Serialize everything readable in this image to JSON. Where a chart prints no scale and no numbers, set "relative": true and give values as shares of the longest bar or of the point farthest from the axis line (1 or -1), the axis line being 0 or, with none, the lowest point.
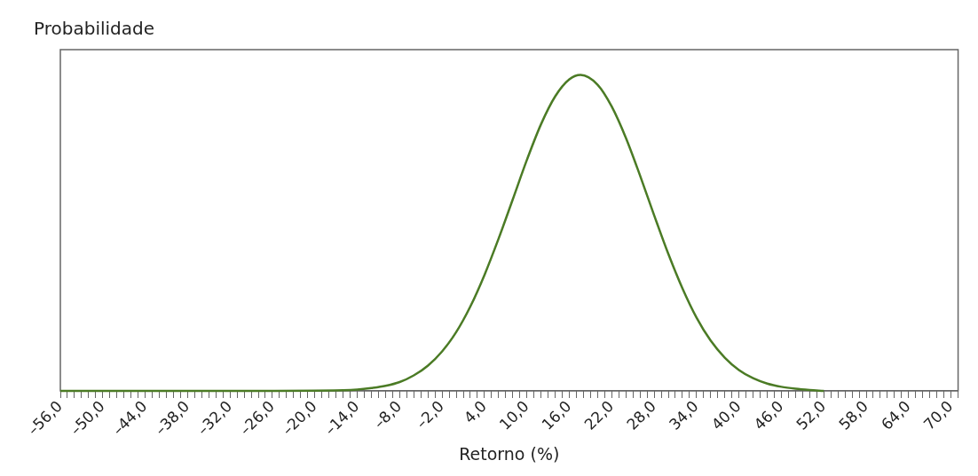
{
  "chart_data": {
    "type": "line",
    "relative": true,
    "xlabel": "Retorno (%)",
    "ylabel": "Probabilidade",
    "xlim": [
      -56,
      71
    ],
    "xticks": [
      {
        "value": -56,
        "label": "–56,0"
      },
      {
        "value": -55,
        "label": null
      },
      {
        "value": -54,
        "label": null
      },
      {
        "value": -53,
        "label": null
      },
      {
        "value": -52,
        "label": null
      },
      {
        "value": -51,
        "label": null
      },
      {
        "value": -50,
        "label": "–50,0"
      },
      {
        "value": -49,
        "label": null
      },
      {
        "value": -48,
        "label": null
      },
      {
        "value": -47,
        "label": null
      },
      {
        "value": -46,
        "label": null
      },
      {
        "value": -45,
        "label": null
      },
      {
        "value": -44,
        "label": "–44,0"
      },
      {
        "value": -43,
        "label": null
      },
      {
        "value": -42,
        "label": null
      },
      {
        "value": -41,
        "label": null
      },
      {
        "value": -40,
        "label": null
      },
      {
        "value": -39,
        "label": null
      },
      {
        "value": -38,
        "label": "–38,0"
      },
      {
        "value": -37,
        "label": null
      },
      {
        "value": -36,
        "label": null
      },
      {
        "value": -35,
        "label": null
      },
      {
        "value": -34,
        "label": null
      },
      {
        "value": -33,
        "label": null
      },
      {
        "value": -32,
        "label": "–32,0"
      },
      {
        "value": -31,
        "label": null
      },
      {
        "value": -30,
        "label": null
      },
      {
        "value": -29,
        "label": null
      },
      {
        "value": -28,
        "label": null
      },
      {
        "value": -27,
        "label": null
      },
      {
        "value": -26,
        "label": "–26,0"
      },
      {
        "value": -25,
        "label": null
      },
      {
        "value": -24,
        "label": null
      },
      {
        "value": -23,
        "label": null
      },
      {
        "value": -22,
        "label": null
      },
      {
        "value": -21,
        "label": null
      },
      {
        "value": -20,
        "label": "–20,0"
      },
      {
        "value": -19,
        "label": null
      },
      {
        "value": -18,
        "label": null
      },
      {
        "value": -17,
        "label": null
      },
      {
        "value": -16,
        "label": null
      },
      {
        "value": -15,
        "label": null
      },
      {
        "value": -14,
        "label": "–14,0"
      },
      {
        "value": -13,
        "label": null
      },
      {
        "value": -12,
        "label": null
      },
      {
        "value": -11,
        "label": null
      },
      {
        "value": -10,
        "label": null
      },
      {
        "value": -9,
        "label": null
      },
      {
        "value": -8,
        "label": "–8,0"
      },
      {
        "value": -7,
        "label": null
      },
      {
        "value": -6,
        "label": null
      },
      {
        "value": -5,
        "label": null
      },
      {
        "value": -4,
        "label": null
      },
      {
        "value": -3,
        "label": null
      },
      {
        "value": -2,
        "label": "–2,0"
      },
      {
        "value": -1,
        "label": null
      },
      {
        "value": 0,
        "label": null
      },
      {
        "value": 1,
        "label": null
      },
      {
        "value": 2,
        "label": null
      },
      {
        "value": 3,
        "label": null
      },
      {
        "value": 4,
        "label": "4,0"
      },
      {
        "value": 5,
        "label": null
      },
      {
        "value": 6,
        "label": null
      },
      {
        "value": 7,
        "label": null
      },
      {
        "value": 8,
        "label": null
      },
      {
        "value": 9,
        "label": null
      },
      {
        "value": 10,
        "label": "10,0"
      },
      {
        "value": 11,
        "label": null
      },
      {
        "value": 12,
        "label": null
      },
      {
        "value": 13,
        "label": null
      },
      {
        "value": 14,
        "label": null
      },
      {
        "value": 15,
        "label": null
      },
      {
        "value": 16,
        "label": "16,0"
      },
      {
        "value": 17,
        "label": null
      },
      {
        "value": 18,
        "label": null
      },
      {
        "value": 19,
        "label": null
      },
      {
        "value": 20,
        "label": null
      },
      {
        "value": 21,
        "label": null
      },
      {
        "value": 22,
        "label": "22,0"
      },
      {
        "value": 23,
        "label": null
      },
      {
        "value": 24,
        "label": null
      },
      {
        "value": 25,
        "label": null
      },
      {
        "value": 26,
        "label": null
      },
      {
        "value": 27,
        "label": null
      },
      {
        "value": 28,
        "label": "28,0"
      },
      {
        "value": 29,
        "label": null
      },
      {
        "value": 30,
        "label": null
      },
      {
        "value": 31,
        "label": null
      },
      {
        "value": 32,
        "label": null
      },
      {
        "value": 33,
        "label": null
      },
      {
        "value": 34,
        "label": "34,0"
      },
      {
        "value": 35,
        "label": null
      },
      {
        "value": 36,
        "label": null
      },
      {
        "value": 37,
        "label": null
      },
      {
        "value": 38,
        "label": null
      },
      {
        "value": 39,
        "label": null
      },
      {
        "value": 40,
        "label": "40,0"
      },
      {
        "value": 41,
        "label": null
      },
      {
        "value": 42,
        "label": null
      },
      {
        "value": 43,
        "label": null
      },
      {
        "value": 44,
        "label": null
      },
      {
        "value": 45,
        "label": null
      },
      {
        "value": 46,
        "label": "46,0"
      },
      {
        "value": 47,
        "label": null
      },
      {
        "value": 48,
        "label": null
      },
      {
        "value": 49,
        "label": null
      },
      {
        "value": 50,
        "label": null
      },
      {
        "value": 51,
        "label": null
      },
      {
        "value": 52,
        "label": "52,0"
      },
      {
        "value": 53,
        "label": null
      },
      {
        "value": 54,
        "label": null
      },
      {
        "value": 55,
        "label": null
      },
      {
        "value": 56,
        "label": null
      },
      {
        "value": 57,
        "label": null
      },
      {
        "value": 58,
        "label": "58,0"
      },
      {
        "value": 59,
        "label": null
      },
      {
        "value": 60,
        "label": null
      },
      {
        "value": 61,
        "label": null
      },
      {
        "value": 62,
        "label": null
      },
      {
        "value": 63,
        "label": null
      },
      {
        "value": 64,
        "label": "64,0"
      },
      {
        "value": 65,
        "label": null
      },
      {
        "value": 66,
        "label": null
      },
      {
        "value": 67,
        "label": null
      },
      {
        "value": 68,
        "label": null
      },
      {
        "value": 69,
        "label": null
      },
      {
        "value": 70,
        "label": "70,0"
      },
      {
        "value": 71,
        "label": null
      }
    ],
    "series": [
      {
        "color": "#4b7b25",
        "x": [
          -56,
          -30,
          -16,
          -14,
          -12,
          -10,
          -8,
          -6,
          -4,
          -2,
          0,
          2,
          4,
          6,
          8,
          10,
          12,
          14,
          16,
          17.6,
          20,
          22,
          24,
          26,
          28,
          30,
          32,
          34,
          36,
          38,
          40,
          42,
          44,
          46,
          48,
          50,
          52
        ],
        "values": [
          0,
          0,
          0.002,
          0.004,
          0.009,
          0.016,
          0.028,
          0.049,
          0.08,
          0.125,
          0.186,
          0.267,
          0.367,
          0.482,
          0.606,
          0.731,
          0.844,
          0.932,
          0.986,
          1,
          0.969,
          0.9,
          0.801,
          0.682,
          0.556,
          0.434,
          0.325,
          0.232,
          0.159,
          0.105,
          0.066,
          0.04,
          0.023,
          0.013,
          0.007,
          0.003,
          0
        ]
      }
    ]
  }
}
